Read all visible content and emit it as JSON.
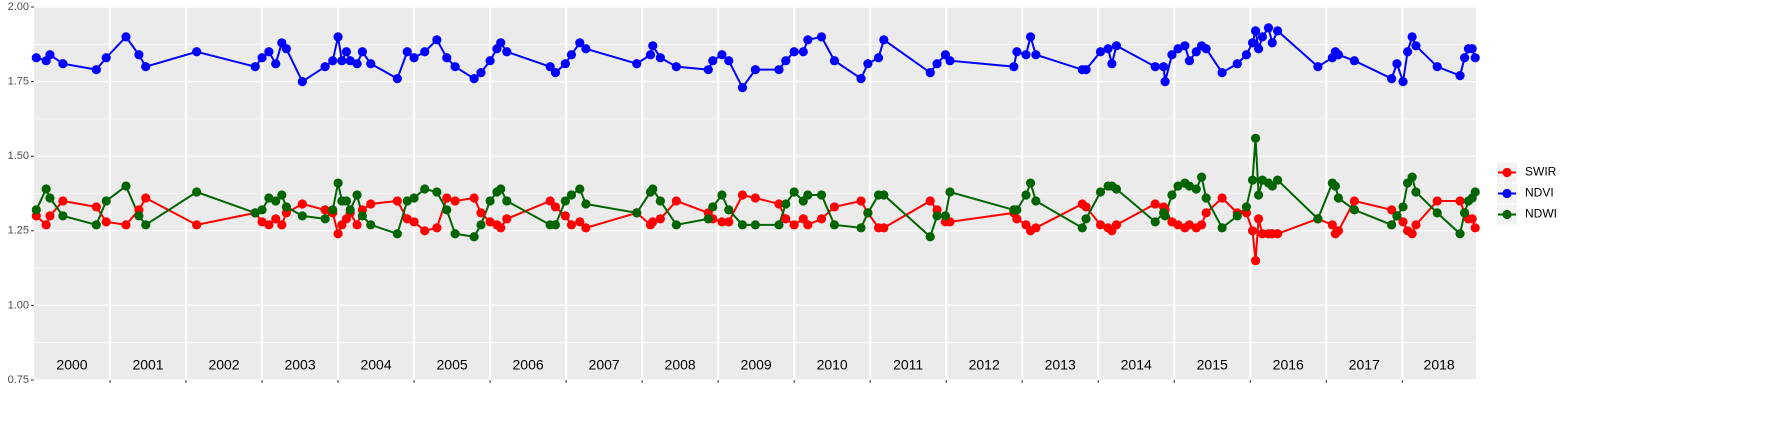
{
  "chart_data": {
    "type": "line",
    "x": [
      2000.03,
      2000.16,
      2000.21,
      2000.38,
      2000.82,
      2000.95,
      2001.21,
      2001.38,
      2001.47,
      2002.14,
      2002.91,
      2003.0,
      2003.09,
      2003.18,
      2003.26,
      2003.32,
      2003.53,
      2003.83,
      2003.93,
      2004.0,
      2004.05,
      2004.11,
      2004.16,
      2004.25,
      2004.32,
      2004.43,
      2004.78,
      2004.91,
      2005.0,
      2005.14,
      2005.3,
      2005.43,
      2005.54,
      2005.79,
      2005.88,
      2006.0,
      2006.09,
      2006.14,
      2006.22,
      2006.79,
      2006.86,
      2006.99,
      2007.07,
      2007.18,
      2007.26,
      2007.93,
      2008.11,
      2008.14,
      2008.24,
      2008.45,
      2008.87,
      2008.93,
      2009.05,
      2009.14,
      2009.32,
      2009.49,
      2009.8,
      2009.89,
      2010.0,
      2010.12,
      2010.18,
      2010.36,
      2010.53,
      2010.88,
      2010.97,
      2011.11,
      2011.18,
      2011.79,
      2011.88,
      2011.99,
      2012.05,
      2012.89,
      2012.93,
      2013.05,
      2013.11,
      2013.18,
      2013.79,
      2013.84,
      2014.03,
      2014.13,
      2014.18,
      2014.24,
      2014.75,
      2014.86,
      2014.88,
      2014.97,
      2015.05,
      2015.14,
      2015.2,
      2015.29,
      2015.36,
      2015.42,
      2015.63,
      2015.83,
      2015.95,
      2016.03,
      2016.07,
      2016.11,
      2016.16,
      2016.24,
      2016.29,
      2016.36,
      2016.89,
      2017.08,
      2017.12,
      2017.16,
      2017.37,
      2017.86,
      2017.93,
      2018.01,
      2018.07,
      2018.13,
      2018.18,
      2018.46,
      2018.76,
      2018.82,
      2018.87,
      2018.92,
      2018.96
    ],
    "series": [
      {
        "name": "SWIR",
        "color": "#ff0000",
        "values": [
          1.3,
          1.27,
          1.3,
          1.35,
          1.33,
          1.28,
          1.27,
          1.32,
          1.36,
          1.27,
          1.31,
          1.28,
          1.27,
          1.29,
          1.27,
          1.31,
          1.34,
          1.32,
          1.31,
          1.24,
          1.27,
          1.29,
          1.31,
          1.27,
          1.32,
          1.34,
          1.35,
          1.29,
          1.28,
          1.25,
          1.26,
          1.36,
          1.35,
          1.36,
          1.31,
          1.28,
          1.27,
          1.26,
          1.29,
          1.35,
          1.33,
          1.3,
          1.27,
          1.28,
          1.26,
          1.31,
          1.27,
          1.28,
          1.29,
          1.35,
          1.31,
          1.29,
          1.28,
          1.28,
          1.37,
          1.36,
          1.34,
          1.29,
          1.27,
          1.29,
          1.27,
          1.29,
          1.33,
          1.35,
          1.31,
          1.26,
          1.26,
          1.35,
          1.32,
          1.28,
          1.28,
          1.31,
          1.29,
          1.27,
          1.25,
          1.26,
          1.34,
          1.33,
          1.27,
          1.26,
          1.25,
          1.27,
          1.34,
          1.33,
          1.32,
          1.28,
          1.27,
          1.26,
          1.27,
          1.26,
          1.27,
          1.31,
          1.36,
          1.31,
          1.31,
          1.25,
          1.15,
          1.29,
          1.24,
          1.24,
          1.24,
          1.24,
          1.29,
          1.27,
          1.24,
          1.25,
          1.35,
          1.32,
          1.3,
          1.28,
          1.25,
          1.24,
          1.27,
          1.35,
          1.35,
          1.31,
          1.29,
          1.29,
          1.26
        ]
      },
      {
        "name": "NDVI",
        "color": "#0000ff",
        "values": [
          1.83,
          1.82,
          1.84,
          1.81,
          1.79,
          1.83,
          1.9,
          1.84,
          1.8,
          1.85,
          1.8,
          1.83,
          1.85,
          1.81,
          1.88,
          1.86,
          1.75,
          1.8,
          1.82,
          1.9,
          1.82,
          1.85,
          1.82,
          1.81,
          1.85,
          1.81,
          1.76,
          1.85,
          1.83,
          1.85,
          1.89,
          1.83,
          1.8,
          1.76,
          1.78,
          1.82,
          1.86,
          1.88,
          1.85,
          1.8,
          1.78,
          1.81,
          1.84,
          1.88,
          1.86,
          1.81,
          1.84,
          1.87,
          1.83,
          1.8,
          1.79,
          1.82,
          1.84,
          1.82,
          1.73,
          1.79,
          1.79,
          1.82,
          1.85,
          1.85,
          1.89,
          1.9,
          1.82,
          1.76,
          1.81,
          1.83,
          1.89,
          1.78,
          1.81,
          1.84,
          1.82,
          1.8,
          1.85,
          1.84,
          1.9,
          1.84,
          1.79,
          1.79,
          1.85,
          1.86,
          1.81,
          1.87,
          1.8,
          1.8,
          1.75,
          1.84,
          1.86,
          1.87,
          1.82,
          1.85,
          1.87,
          1.86,
          1.78,
          1.81,
          1.84,
          1.88,
          1.92,
          1.86,
          1.9,
          1.93,
          1.88,
          1.92,
          1.8,
          1.83,
          1.85,
          1.84,
          1.82,
          1.76,
          1.81,
          1.75,
          1.85,
          1.9,
          1.87,
          1.8,
          1.77,
          1.83,
          1.86,
          1.86,
          1.83
        ]
      },
      {
        "name": "NDWI",
        "color": "#006400",
        "values": [
          1.32,
          1.39,
          1.36,
          1.3,
          1.27,
          1.35,
          1.4,
          1.3,
          1.27,
          1.38,
          1.31,
          1.32,
          1.36,
          1.35,
          1.37,
          1.33,
          1.3,
          1.29,
          1.32,
          1.41,
          1.35,
          1.35,
          1.32,
          1.37,
          1.3,
          1.27,
          1.24,
          1.35,
          1.36,
          1.39,
          1.38,
          1.32,
          1.24,
          1.23,
          1.27,
          1.35,
          1.38,
          1.39,
          1.35,
          1.27,
          1.27,
          1.35,
          1.37,
          1.39,
          1.34,
          1.31,
          1.38,
          1.39,
          1.35,
          1.27,
          1.29,
          1.33,
          1.37,
          1.32,
          1.27,
          1.27,
          1.27,
          1.34,
          1.38,
          1.35,
          1.37,
          1.37,
          1.27,
          1.26,
          1.31,
          1.37,
          1.37,
          1.23,
          1.3,
          1.3,
          1.38,
          1.32,
          1.32,
          1.37,
          1.41,
          1.35,
          1.26,
          1.29,
          1.38,
          1.4,
          1.4,
          1.39,
          1.28,
          1.31,
          1.3,
          1.37,
          1.4,
          1.41,
          1.4,
          1.39,
          1.43,
          1.36,
          1.26,
          1.3,
          1.33,
          1.42,
          1.56,
          1.37,
          1.42,
          1.41,
          1.4,
          1.42,
          1.29,
          1.41,
          1.4,
          1.36,
          1.32,
          1.27,
          1.3,
          1.33,
          1.41,
          1.43,
          1.38,
          1.31,
          1.24,
          1.31,
          1.35,
          1.36,
          1.38
        ]
      }
    ],
    "year_labels": [
      "2000",
      "2001",
      "2002",
      "2003",
      "2004",
      "2005",
      "2006",
      "2007",
      "2008",
      "2009",
      "2010",
      "2011",
      "2012",
      "2013",
      "2014",
      "2015",
      "2016",
      "2017",
      "2018"
    ],
    "xlim": [
      2000,
      2018.97
    ],
    "xticks": [
      2001,
      2002,
      2003,
      2004,
      2005,
      2006,
      2007,
      2008,
      2009,
      2010,
      2011,
      2012,
      2013,
      2014,
      2015,
      2016,
      2017,
      2018
    ],
    "ylim": [
      0.75,
      2.0
    ],
    "yticks": [
      {
        "value": 0.75,
        "label": "0.75"
      },
      {
        "value": 1.0,
        "label": "1.00"
      },
      {
        "value": 1.25,
        "label": "1.25"
      },
      {
        "value": 1.5,
        "label": "1.50"
      },
      {
        "value": 1.75,
        "label": "1.75"
      },
      {
        "value": 2.0,
        "label": "2.00"
      }
    ],
    "grid": true,
    "legend": "right"
  }
}
